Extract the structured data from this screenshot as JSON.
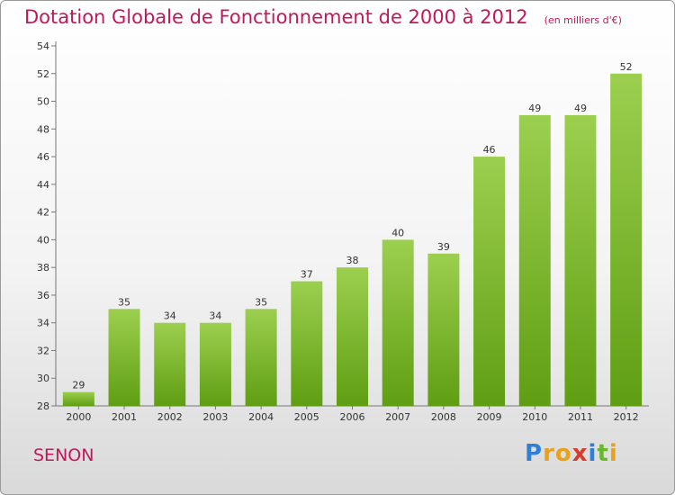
{
  "title": "Dotation Globale de Fonctionnement de 2000 à 2012",
  "subtitle": "(en milliers d'€)",
  "city": "SENON",
  "logo": {
    "letters": [
      "P",
      "r",
      "o",
      "x",
      "i",
      "t",
      "i"
    ],
    "colors": [
      "#2f7fd6",
      "#e8a21a",
      "#e8a21a",
      "#d93a2a",
      "#2f7fd6",
      "#6ab82e",
      "#e8a21a"
    ]
  },
  "colors": {
    "bar_top": "#9ccf4f",
    "bar_bottom": "#5f9e12",
    "title": "#c2185b"
  },
  "chart_data": {
    "type": "bar",
    "categories": [
      "2000",
      "2001",
      "2002",
      "2003",
      "2004",
      "2005",
      "2006",
      "2007",
      "2008",
      "2009",
      "2010",
      "2011",
      "2012"
    ],
    "values": [
      29,
      35,
      34,
      34,
      35,
      37,
      38,
      40,
      39,
      46,
      49,
      49,
      52
    ],
    "ylim": [
      28,
      54
    ],
    "yticks": [
      28,
      30,
      32,
      34,
      36,
      38,
      40,
      42,
      44,
      46,
      48,
      50,
      52,
      54
    ],
    "grid": false
  }
}
